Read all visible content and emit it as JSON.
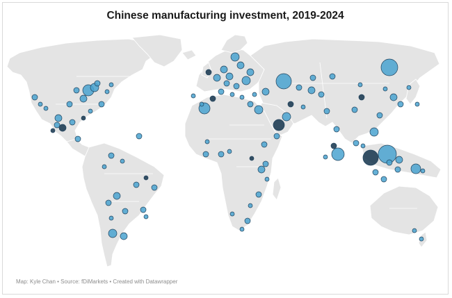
{
  "title": "Chinese manufacturing investment, 2019-2024",
  "credit": "Map: Kyle Chan • Source: fDiMarkets • Created with Datawrapper",
  "colors": {
    "land": "#e4e4e4",
    "border": "#ffffff",
    "bubble_fill": "#4aa3d0",
    "bubble_stroke": "#20425c",
    "dark_bubble": "#14344c"
  },
  "legend": null
}
